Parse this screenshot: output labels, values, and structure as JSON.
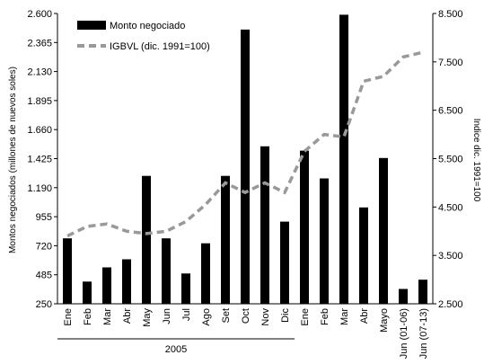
{
  "chart_data": {
    "type": "bar",
    "categories": [
      "Ene",
      "Feb",
      "Mar",
      "Abr",
      "May",
      "Jun",
      "Jul",
      "Ago",
      "Set",
      "Oct",
      "Nov",
      "Dic",
      "Ene",
      "Feb",
      "Mar",
      "Abr",
      "Mayo",
      "Jun (01-06)",
      "Jun (07-13)"
    ],
    "group_label": "2005",
    "group_span": [
      0,
      11
    ],
    "series": [
      {
        "name": "Monto negociado",
        "kind": "bar",
        "axis": "left",
        "color": "#000000",
        "values": [
          780,
          430,
          545,
          610,
          1285,
          780,
          495,
          740,
          1285,
          2470,
          1525,
          915,
          1490,
          1265,
          2590,
          1030,
          1430,
          370,
          445
        ]
      },
      {
        "name": "IGBVL (dic. 1991=100)",
        "kind": "line",
        "axis": "right",
        "color": "#999999",
        "values": [
          3900,
          4100,
          4150,
          4000,
          3950,
          4000,
          4200,
          4550,
          5000,
          4800,
          5000,
          4800,
          5650,
          6000,
          5950,
          7100,
          7200,
          7600,
          7700
        ]
      }
    ],
    "ylabel": "Montos negociados (millones de nuevos soles)",
    "y2label": "Indice dic. 1991=100",
    "ylim": [
      250,
      2600
    ],
    "yticks": [
      "250",
      "485",
      "720",
      "955",
      "1.190",
      "1.425",
      "1.660",
      "1.895",
      "2.130",
      "2.365",
      "2.600"
    ],
    "y2lim": [
      2500,
      8500
    ],
    "y2ticks": [
      "2.500",
      "3.500",
      "4.500",
      "5.500",
      "6.500",
      "7.500",
      "8.500"
    ],
    "legend_position": "top-left",
    "grid": false
  }
}
